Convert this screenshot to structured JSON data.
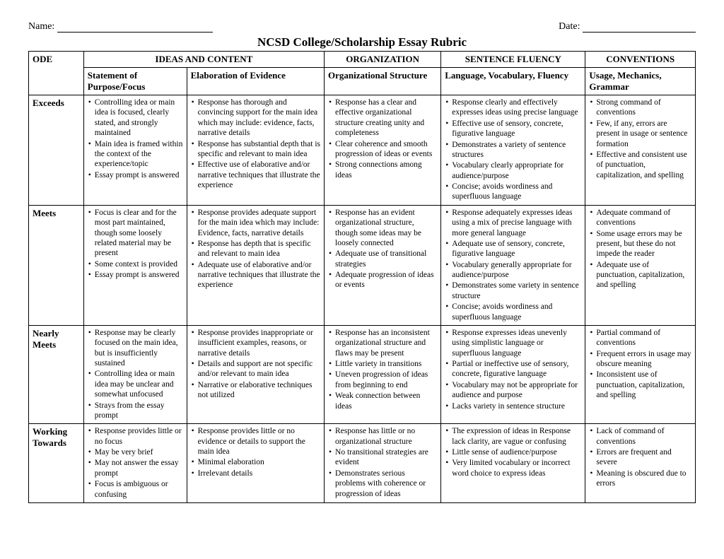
{
  "header": {
    "name_label": "Name:",
    "date_label": "Date:",
    "title": "NCSD College/Scholarship Essay Rubric"
  },
  "columns": {
    "ode": "ODE",
    "ideas": "IDEAS AND CONTENT",
    "org": "ORGANIZATION",
    "fluency": "SENTENCE FLUENCY",
    "conv": "CONVENTIONS",
    "sub_purpose": "Statement of Purpose/Focus",
    "sub_evidence": "Elaboration of Evidence",
    "sub_org": "Organizational Structure",
    "sub_lang": "Language, Vocabulary, Fluency",
    "sub_usage": "Usage, Mechanics, Grammar"
  },
  "levels": [
    "Exceeds",
    "Meets",
    "Nearly Meets",
    "Working Towards"
  ],
  "rows": {
    "exceeds": {
      "purpose": [
        "Controlling idea or main idea is focused, clearly stated, and strongly maintained",
        "Main idea is framed within the context of the experience/topic",
        "Essay prompt is answered"
      ],
      "evidence": [
        "Response has thorough and convincing support for the main idea which may include: evidence, facts, narrative details",
        "Response has substantial depth that is specific and relevant to main idea",
        "Effective use of elaborative and/or narrative techniques that illustrate the experience"
      ],
      "org": [
        "Response has a clear and effective organizational structure creating unity and completeness",
        "Clear coherence and smooth progression of ideas or events",
        "Strong connections among ideas"
      ],
      "lang": [
        "Response clearly and effectively expresses ideas using precise language",
        "Effective use of sensory, concrete, figurative language",
        "Demonstrates a variety of sentence structures",
        "Vocabulary clearly appropriate for audience/purpose",
        "Concise; avoids wordiness and superfluous language"
      ],
      "usage": [
        "Strong command of conventions",
        "Few, if any, errors are present in usage or sentence formation",
        "Effective and consistent use of punctuation, capitalization, and spelling"
      ]
    },
    "meets": {
      "purpose": [
        "Focus is clear and for the most part maintained, though some loosely related material may be present",
        "Some context is provided",
        "Essay prompt is answered"
      ],
      "evidence": [
        "Response provides adequate support for the main idea which may include: Evidence, facts, narrative details",
        "Response has depth that is specific and relevant to main idea",
        "Adequate use of elaborative and/or narrative techniques that illustrate the experience"
      ],
      "org": [
        "Response has an evident organizational structure, though some ideas may be loosely connected",
        "Adequate use of transitional strategies",
        "Adequate progression of ideas or events"
      ],
      "lang": [
        "Response adequately expresses ideas using a mix of precise language with more general language",
        "Adequate use of sensory, concrete, figurative language",
        "Vocabulary generally appropriate for audience/purpose",
        "Demonstrates some variety in sentence structure",
        "Concise; avoids wordiness and superfluous language"
      ],
      "usage": [
        "Adequate command of conventions",
        "Some usage errors may be present, but these do not impede the reader",
        "Adequate use of punctuation, capitalization, and spelling"
      ]
    },
    "nearly": {
      "purpose": [
        "Response may be clearly focused on the main idea, but is insufficiently sustained",
        "Controlling idea or main idea may be unclear and somewhat unfocused",
        "Strays from the essay prompt"
      ],
      "evidence": [
        "Response provides inappropriate or insufficient examples, reasons, or narrative details",
        "Details and support are not specific and/or relevant to main idea",
        "Narrative or elaborative techniques not utilized"
      ],
      "org": [
        "Response has an inconsistent organizational structure and flaws may be present",
        "Little variety in transitions",
        "Uneven progression of ideas from beginning to end",
        "Weak connection between ideas"
      ],
      "lang": [
        "Response expresses ideas unevenly using simplistic language or superfluous language",
        "Partial or ineffective use of sensory, concrete, figurative language",
        "Vocabulary may not be appropriate for audience and purpose",
        "Lacks variety in sentence structure"
      ],
      "usage": [
        "Partial command of conventions",
        "Frequent errors in usage may obscure meaning",
        "Inconsistent use of punctuation, capitalization, and spelling"
      ]
    },
    "working": {
      "purpose": [
        "Response provides little or no focus",
        "May be very brief",
        "May not answer the essay prompt",
        "Focus is ambiguous or confusing"
      ],
      "evidence": [
        "Response provides little or no evidence or details to support the main idea",
        "Minimal elaboration",
        "Irrelevant details"
      ],
      "org": [
        "Response has little or no organizational structure",
        "No transitional strategies are evident",
        "Demonstrates serious problems with coherence or progression of ideas"
      ],
      "lang": [
        "The expression of ideas in Response lack clarity, are vague or confusing",
        "Little sense of audience/purpose",
        "Very limited vocabulary or incorrect word choice to express ideas"
      ],
      "usage": [
        "Lack of command of conventions",
        "Errors are frequent and severe",
        "Meaning is obscured due to errors"
      ]
    }
  }
}
